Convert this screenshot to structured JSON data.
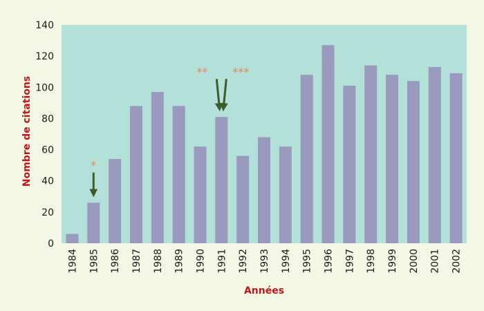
{
  "chart_data": {
    "type": "bar",
    "categories": [
      "1984",
      "1985",
      "1986",
      "1987",
      "1988",
      "1989",
      "1990",
      "1991",
      "1992",
      "1993",
      "1994",
      "1995",
      "1996",
      "1997",
      "1998",
      "1999",
      "2000",
      "2001",
      "2002"
    ],
    "values": [
      6,
      26,
      54,
      88,
      97,
      88,
      62,
      81,
      56,
      68,
      62,
      108,
      127,
      101,
      114,
      108,
      104,
      113,
      109
    ],
    "xlabel": "Années",
    "ylabel": "Nombre de citations",
    "ylim": [
      0,
      140
    ],
    "yticks": [
      0,
      20,
      40,
      60,
      80,
      100,
      120,
      140
    ],
    "grid": false,
    "colors": {
      "plot_bg": "#b3e0d8",
      "bar": "#9a9abf",
      "arrow": "#3d5c2e",
      "annotation": "#e8875a",
      "axis_title": "#c4171c"
    },
    "annotations": [
      {
        "text": "*",
        "category": "1985",
        "y": 40
      },
      {
        "text": "**",
        "category": "1991",
        "y": 100
      },
      {
        "text": "***",
        "category": "1991",
        "y": 100
      }
    ]
  }
}
